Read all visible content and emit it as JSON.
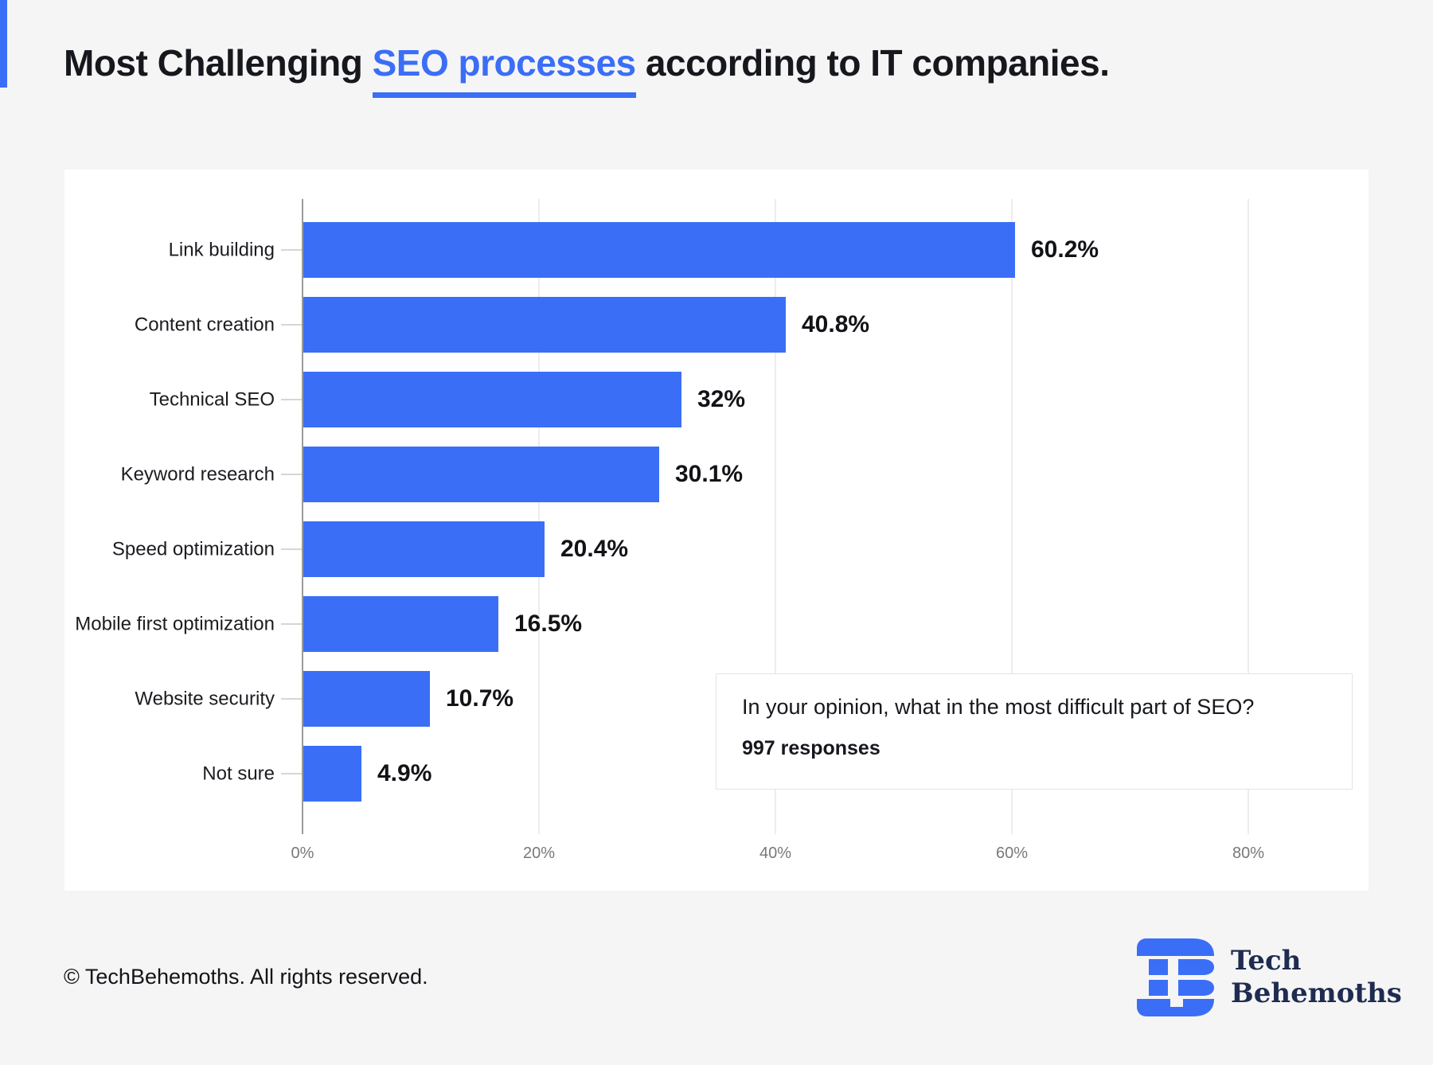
{
  "page": {
    "title": {
      "prefix": "Most Challenging ",
      "highlight": "SEO processes",
      "suffix": " according to IT companies."
    },
    "footer_copyright": "© TechBehemoths. All rights reserved.",
    "logo": {
      "line1": "Tech",
      "line2": "Behemoths"
    }
  },
  "colors": {
    "accent_blue": "#3B6EF7",
    "logo_navy": "#1F2C50",
    "page_background": "#F5F5F6",
    "panel_background": "#FFFFFF",
    "axis_line": "#9B9B9B",
    "gridline": "#EDEDEE",
    "tick_label": "#787878"
  },
  "chart_data": {
    "type": "bar",
    "orientation": "horizontal",
    "title": "Most Challenging SEO processes according to IT companies.",
    "categories": [
      "Link building",
      "Content creation",
      "Technical SEO",
      "Keyword research",
      "Speed optimization",
      "Mobile first optimization",
      "Website security",
      "Not sure"
    ],
    "values": [
      60.2,
      40.8,
      32,
      30.1,
      20.4,
      16.5,
      10.7,
      4.9
    ],
    "value_labels": [
      "60.2%",
      "40.8%",
      "32%",
      "30.1%",
      "20.4%",
      "16.5%",
      "10.7%",
      "4.9%"
    ],
    "x_ticks": [
      {
        "value": 0,
        "label": "0%"
      },
      {
        "value": 20,
        "label": "20%"
      },
      {
        "value": 40,
        "label": "40%"
      },
      {
        "value": 60,
        "label": "60%"
      },
      {
        "value": 80,
        "label": "80%"
      }
    ],
    "xlim": [
      0,
      88
    ],
    "bar_color": "#3B6EF7",
    "grid": "vertical, light, at 20% steps",
    "legend": "none",
    "annotation": {
      "question": "In your opinion, what in the most difficult part of SEO?",
      "responses": "997 responses"
    }
  }
}
